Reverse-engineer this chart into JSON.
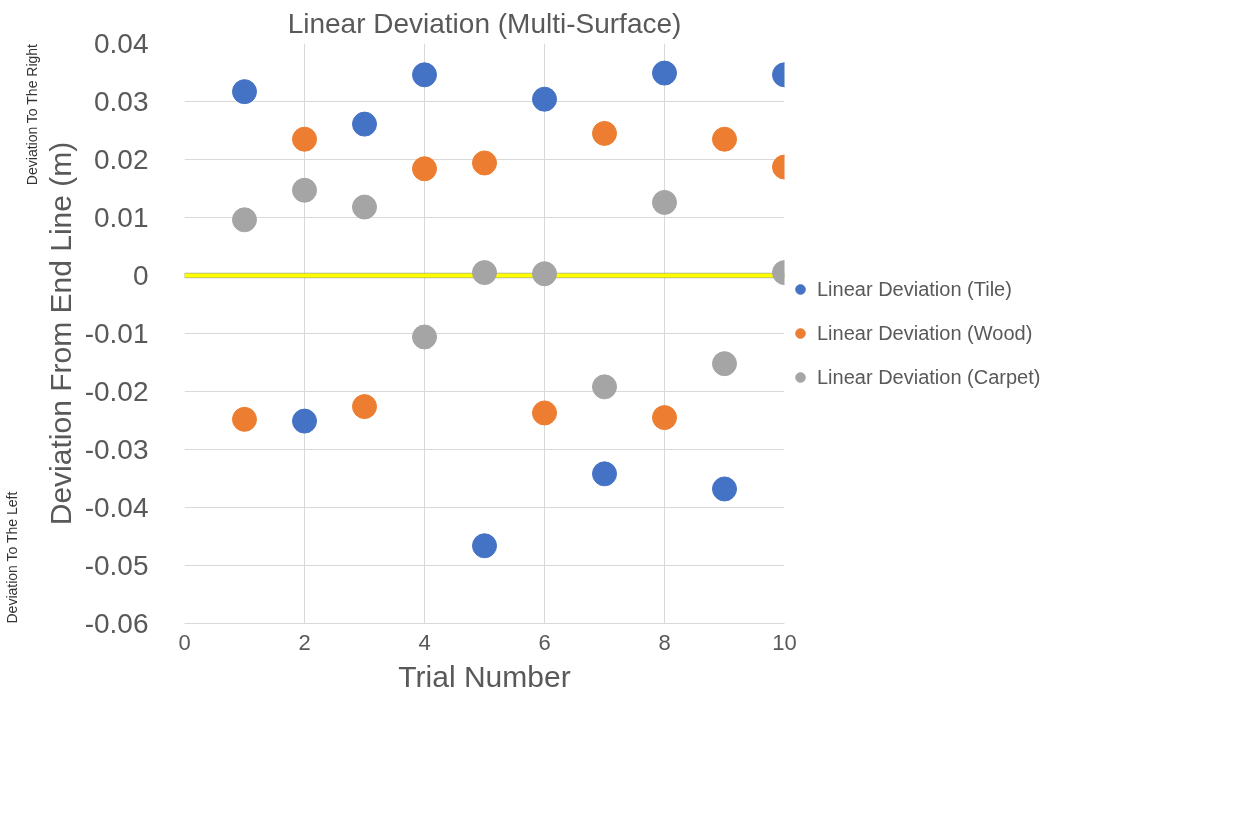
{
  "chart_data": {
    "type": "scatter",
    "title": "Linear Deviation (Multi-Surface)",
    "xlabel": "Trial Number",
    "ylabel": "Deviation From End Line (m)",
    "x": [
      1,
      2,
      3,
      4,
      5,
      6,
      7,
      8,
      9,
      10
    ],
    "series": [
      {
        "name": "Linear Deviation (Tile)",
        "color": "#4472c4",
        "values": [
          0.0317,
          -0.0251,
          0.0261,
          0.0346,
          -0.0466,
          0.0304,
          -0.0342,
          0.0349,
          -0.0368,
          0.0346
        ]
      },
      {
        "name": "Linear Deviation (Wood)",
        "color": "#ed7d31",
        "values": [
          -0.0248,
          0.0235,
          -0.0226,
          0.0184,
          0.0194,
          -0.0237,
          0.0245,
          -0.0245,
          0.0235,
          0.0187
        ]
      },
      {
        "name": "Linear Deviation (Carpet)",
        "color": "#a5a5a5",
        "values": [
          0.0096,
          0.0147,
          0.0118,
          -0.0106,
          0.0005,
          0.0003,
          -0.0192,
          0.0126,
          -0.0152,
          0.0005
        ]
      }
    ],
    "xlim": [
      0,
      10
    ],
    "xticks": [
      0,
      2,
      4,
      6,
      8,
      10
    ],
    "ylim": [
      -0.06,
      0.04
    ],
    "yticks": [
      {
        "value": -0.06,
        "label": "-0.06"
      },
      {
        "value": -0.05,
        "label": "-0.05"
      },
      {
        "value": -0.04,
        "label": "-0.04"
      },
      {
        "value": -0.03,
        "label": "-0.03"
      },
      {
        "value": -0.02,
        "label": "-0.02"
      },
      {
        "value": -0.01,
        "label": "-0.01"
      },
      {
        "value": 0,
        "label": "0"
      },
      {
        "value": 0.01,
        "label": "0.01"
      },
      {
        "value": 0.02,
        "label": "0.02"
      },
      {
        "value": 0.03,
        "label": "0.03"
      },
      {
        "value": 0.04,
        "label": "0.04"
      }
    ],
    "bands": [
      {
        "axis": "y",
        "from": -0.0004,
        "to": 0.0004,
        "color": "#ffff00"
      }
    ],
    "annotations": [
      "Deviation To The Right",
      "Deviation To The Left"
    ],
    "grid": true,
    "legend": "right",
    "marker": "circle"
  }
}
